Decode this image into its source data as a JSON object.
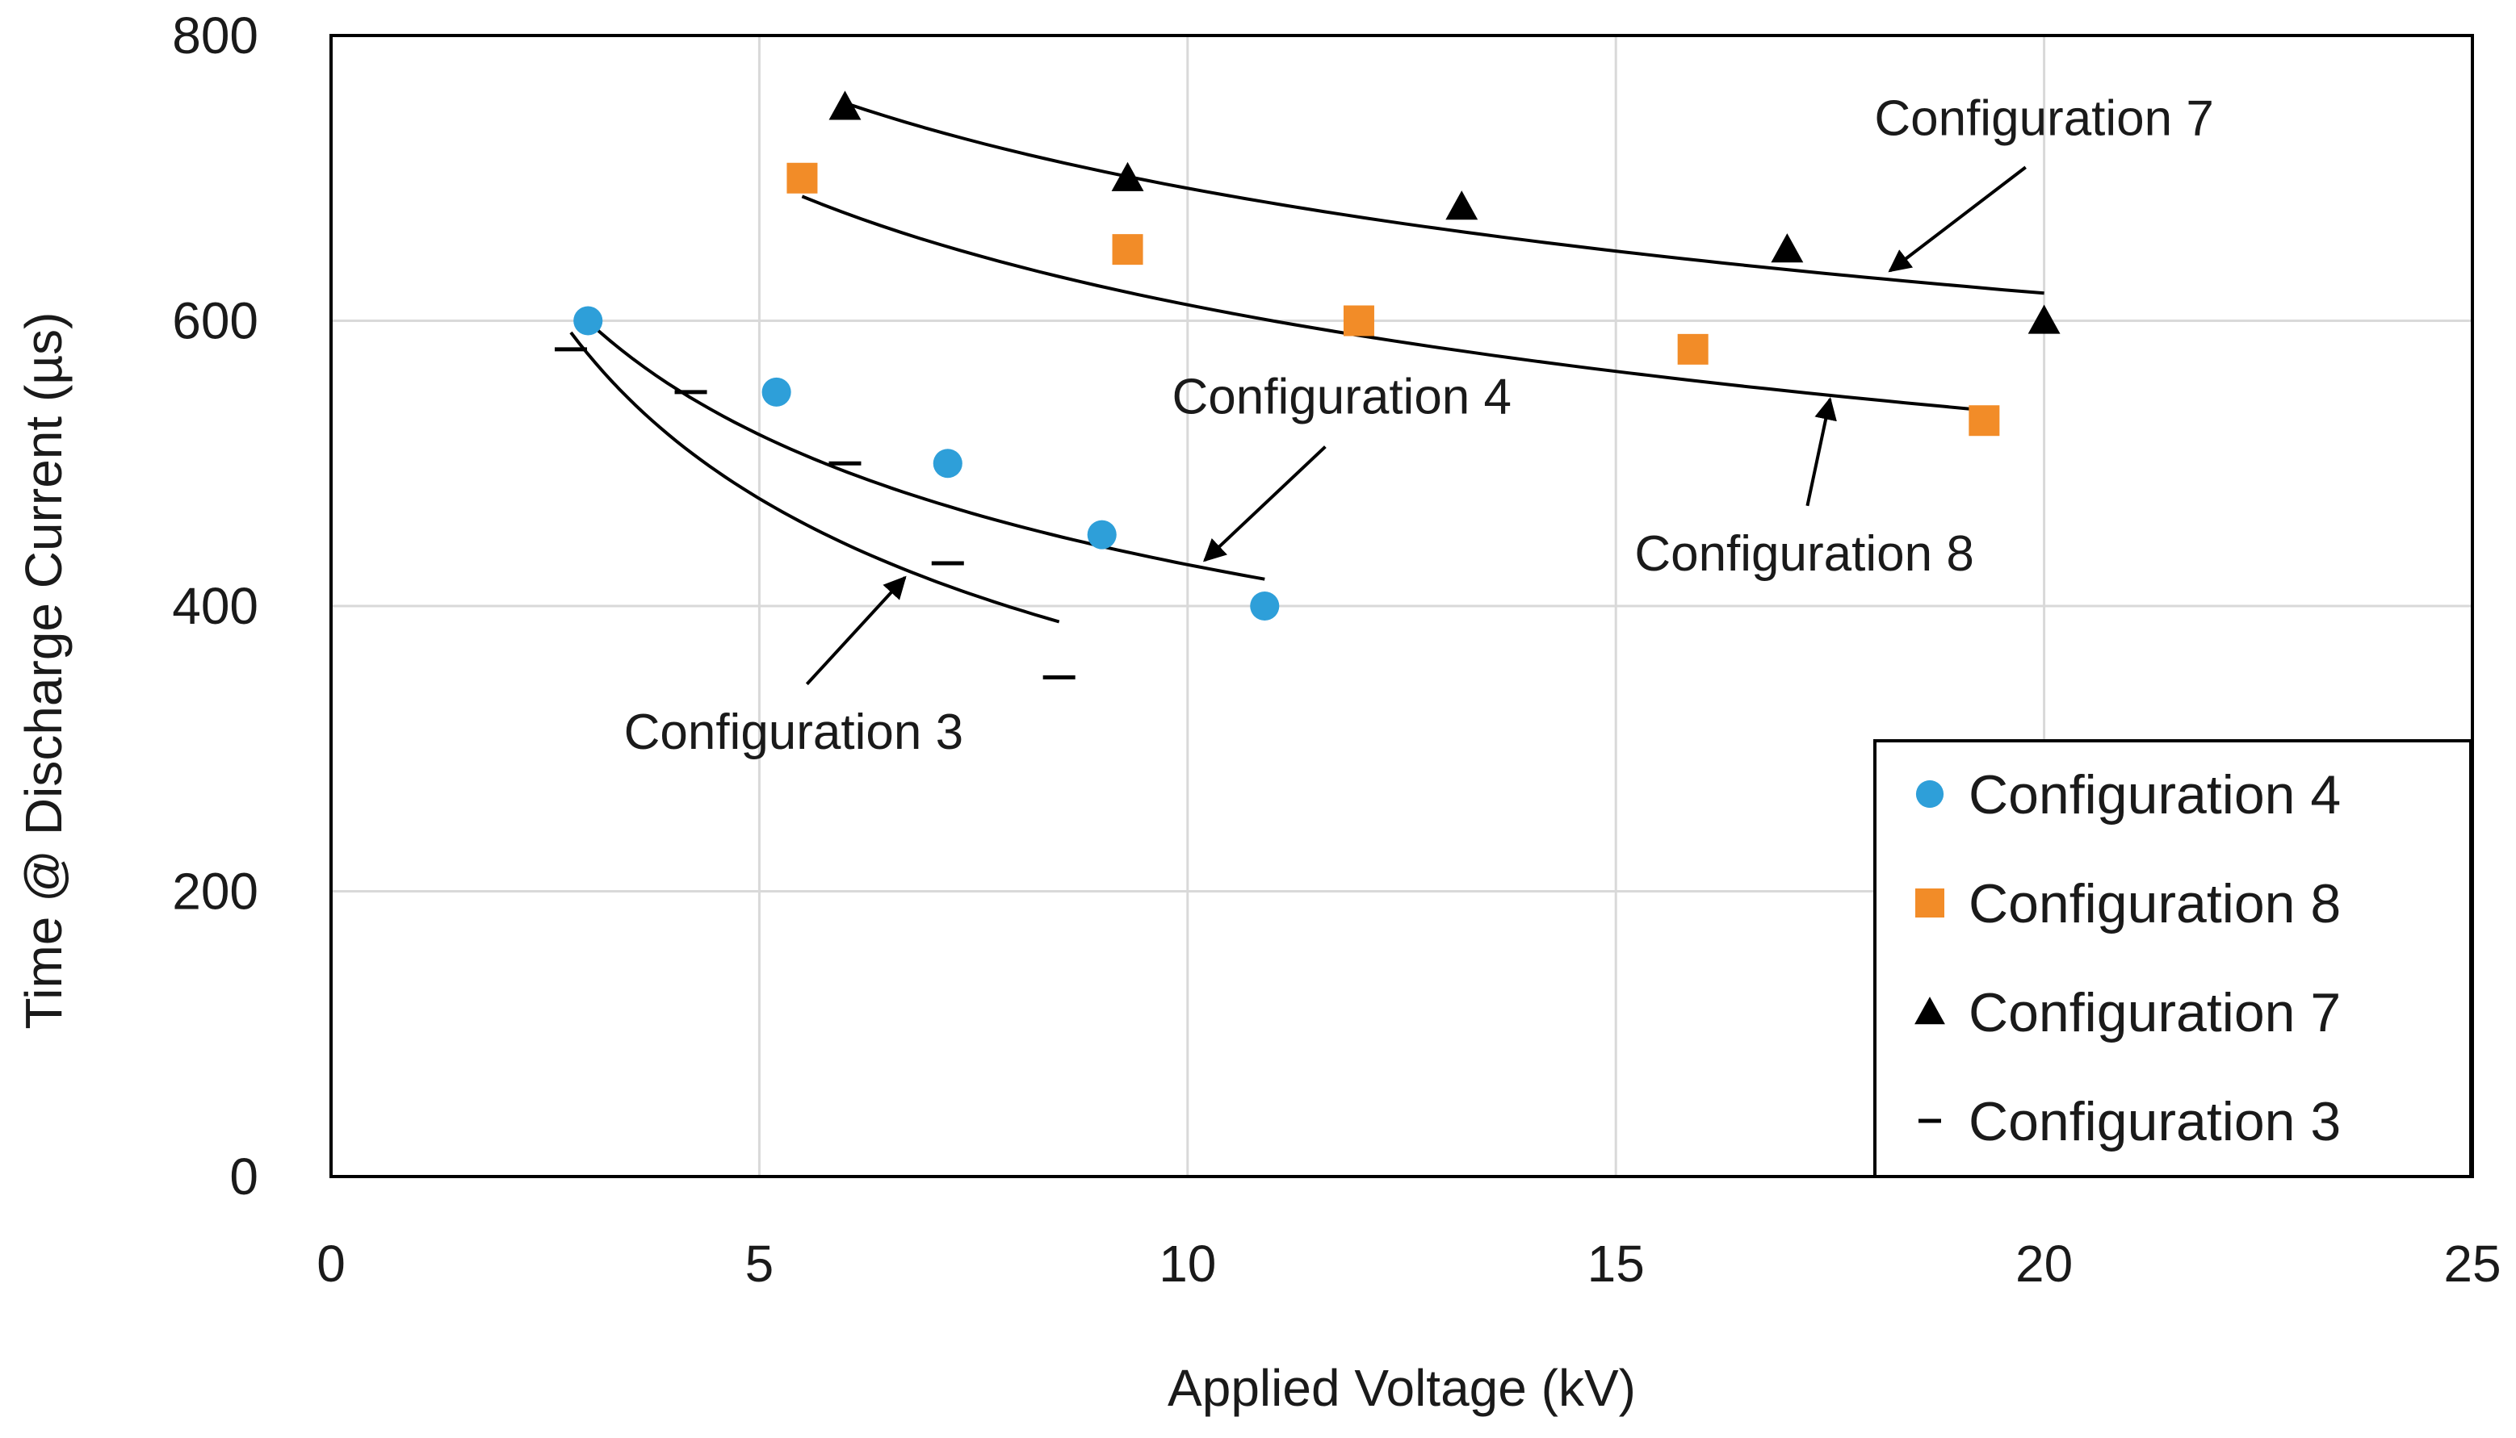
{
  "chart_data": {
    "type": "scatter",
    "title": "",
    "xlabel": "Applied Voltage (kV)",
    "ylabel": "Time @ Discharge Current (µs)",
    "xlim": [
      0,
      25
    ],
    "ylim": [
      0,
      800
    ],
    "xticks": [
      0,
      5,
      10,
      15,
      20,
      25
    ],
    "yticks": [
      0,
      200,
      400,
      600,
      800
    ],
    "grid": true,
    "legend_position": "bottom-right",
    "series": [
      {
        "name": "Configuration 4",
        "marker": "circle",
        "color": "#2e9fd9",
        "x": [
          3.0,
          5.2,
          7.2,
          9.0,
          10.9
        ],
        "y": [
          600,
          550,
          500,
          450,
          400
        ],
        "trend": {
          "a": 813.7,
          "b": -0.278,
          "x_range": [
            3.0,
            10.9
          ]
        }
      },
      {
        "name": "Configuration 8",
        "marker": "square",
        "color": "#f28c28",
        "x": [
          5.5,
          9.3,
          12.0,
          15.9,
          19.3
        ],
        "y": [
          700,
          650,
          600,
          580,
          530
        ],
        "trend": {
          "a": 959.8,
          "b": -0.196,
          "x_range": [
            5.5,
            19.3
          ]
        }
      },
      {
        "name": "Configuration 7",
        "marker": "triangle",
        "color": "#000000",
        "x": [
          6.0,
          9.3,
          13.2,
          17.0,
          20.0
        ],
        "y": [
          750,
          700,
          680,
          650,
          600
        ],
        "trend": {
          "a": 1006.2,
          "b": -0.162,
          "x_range": [
            6.0,
            20.0
          ]
        }
      },
      {
        "name": "Configuration 3",
        "marker": "dash",
        "color": "#000000",
        "x": [
          2.8,
          4.2,
          6.0,
          7.2,
          8.5
        ],
        "y": [
          580,
          550,
          500,
          430,
          350
        ],
        "trend": {
          "a": 873.4,
          "b": -0.378,
          "x_range": [
            2.8,
            8.5
          ]
        }
      }
    ],
    "annotations": [
      {
        "text": "Configuration 7",
        "series": "Configuration 7",
        "label_x": 20.0,
        "label_y": 730,
        "point_x": 18.2,
        "point_y": 635
      },
      {
        "text": "Configuration 8",
        "series": "Configuration 8",
        "label_x": 17.2,
        "label_y": 425,
        "point_x": 17.5,
        "point_y": 545
      },
      {
        "text": "Configuration 4",
        "series": "Configuration 4",
        "label_x": 11.8,
        "label_y": 535,
        "point_x": 10.2,
        "point_y": 432
      },
      {
        "text": "Configuration 3",
        "series": "Configuration 3",
        "label_x": 5.4,
        "label_y": 300,
        "point_x": 6.7,
        "point_y": 420
      }
    ]
  }
}
